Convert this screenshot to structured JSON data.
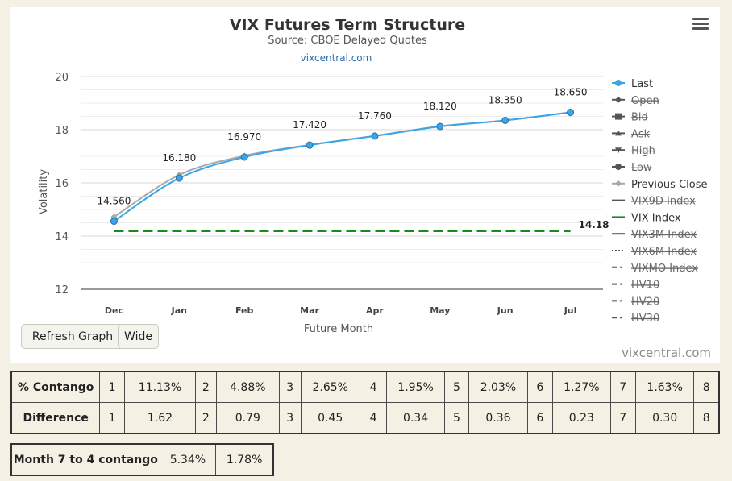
{
  "chart_data": {
    "type": "line",
    "title": "VIX Futures Term Structure",
    "subtitle": "Source: CBOE Delayed Quotes",
    "link_text": "vixcentral.com",
    "xlabel": "Future Month",
    "ylabel": "Volatility",
    "categories": [
      "Dec",
      "Jan",
      "Feb",
      "Mar",
      "Apr",
      "May",
      "Jun",
      "Jul"
    ],
    "ylim": [
      12,
      20
    ],
    "yticks": [
      12,
      14,
      16,
      18,
      20
    ],
    "grid": true,
    "legend_position": "right",
    "series": [
      {
        "name": "Last",
        "values": [
          14.56,
          16.18,
          16.97,
          17.42,
          17.76,
          18.12,
          18.35,
          18.65
        ],
        "value_labels": [
          "14.560",
          "16.180",
          "16.970",
          "17.420",
          "17.760",
          "18.120",
          "18.350",
          "18.650"
        ],
        "color": "#3aa6e8"
      },
      {
        "name": "Previous Close",
        "values": [
          14.72,
          16.3,
          17.02,
          17.43,
          17.77,
          18.13,
          18.35,
          18.65
        ],
        "color": "#a8a8a8"
      },
      {
        "name": "VIX Index",
        "values": [
          14.18,
          14.18,
          14.18,
          14.18,
          14.18,
          14.18,
          14.18,
          14.18
        ],
        "end_label": "14.18",
        "color": "#1a8a1a",
        "dashed": true
      }
    ],
    "legend": [
      {
        "name": "Last",
        "symbol": "circle-line",
        "color": "#3aa6e8",
        "hidden": false
      },
      {
        "name": "Open",
        "symbol": "diamond-line",
        "color": "#555555",
        "hidden": true
      },
      {
        "name": "Bid",
        "symbol": "square-line",
        "color": "#555555",
        "hidden": true
      },
      {
        "name": "Ask",
        "symbol": "triangle-line",
        "color": "#555555",
        "hidden": true
      },
      {
        "name": "High",
        "symbol": "triangle-down-line",
        "color": "#555555",
        "hidden": true
      },
      {
        "name": "Low",
        "symbol": "circle-line",
        "color": "#555555",
        "hidden": true
      },
      {
        "name": "Previous Close",
        "symbol": "diamond-line",
        "color": "#a8a8a8",
        "hidden": false
      },
      {
        "name": "VIX9D Index",
        "symbol": "line",
        "color": "#555555",
        "hidden": true
      },
      {
        "name": "VIX Index",
        "symbol": "line",
        "color": "#1a8a1a",
        "hidden": false
      },
      {
        "name": "VIX3M Index",
        "symbol": "line",
        "color": "#555555",
        "hidden": true
      },
      {
        "name": "VIX6M Index",
        "symbol": "dotted",
        "color": "#555555",
        "hidden": true
      },
      {
        "name": "VIXMO Index",
        "symbol": "dashdot",
        "color": "#555555",
        "hidden": true
      },
      {
        "name": "HV10",
        "symbol": "dashdot",
        "color": "#555555",
        "hidden": true
      },
      {
        "name": "HV20",
        "symbol": "dashdot",
        "color": "#555555",
        "hidden": true
      },
      {
        "name": "HV30",
        "symbol": "dashdot",
        "color": "#555555",
        "hidden": true
      }
    ]
  },
  "buttons": {
    "refresh": "Refresh Graph",
    "wide": "Wide"
  },
  "watermark": "vixcentral.com",
  "contango_table": {
    "rows": [
      {
        "label": "% Contango",
        "cells": [
          "1",
          "11.13%",
          "2",
          "4.88%",
          "3",
          "2.65%",
          "4",
          "1.95%",
          "5",
          "2.03%",
          "6",
          "1.27%",
          "7",
          "1.63%",
          "8"
        ]
      },
      {
        "label": "Difference",
        "cells": [
          "1",
          "1.62",
          "2",
          "0.79",
          "3",
          "0.45",
          "4",
          "0.34",
          "5",
          "0.36",
          "6",
          "0.23",
          "7",
          "0.30",
          "8"
        ]
      }
    ]
  },
  "month_table": {
    "label": "Month 7 to 4 contango",
    "value1": "5.34%",
    "value2": "1.78%"
  }
}
